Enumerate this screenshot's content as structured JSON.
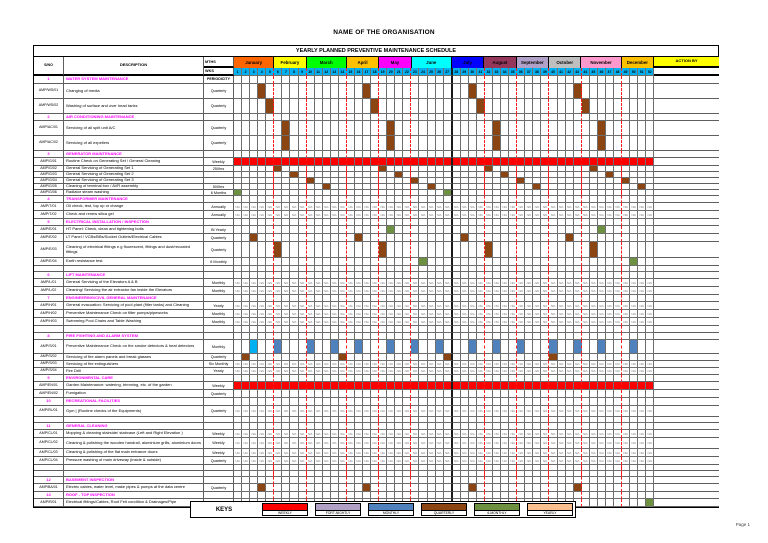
{
  "page": {
    "title": "NAME OF THE ORGANISATION",
    "subtitle": "YEARLY PLANNED PREVENTIVE MAINTENANCE SCHEDULE",
    "page_label": "Page 1"
  },
  "header": {
    "sno": "S/NO",
    "description": "DESCRIPTION",
    "mths": "MTHS",
    "wks": "WKS",
    "action_by": "ACTION BY",
    "periodicity": "PERIODICITY"
  },
  "weeks": 52,
  "month_boundaries": [
    5,
    9,
    14,
    18,
    22,
    31,
    35,
    39,
    43,
    48
  ],
  "midyear_boundary": 27,
  "months": [
    {
      "name": "January",
      "span": 5,
      "color": "#FF6600"
    },
    {
      "name": "February",
      "span": 4,
      "color": "#FFFF00"
    },
    {
      "name": "March",
      "span": 5,
      "color": "#00FF00"
    },
    {
      "name": "April",
      "span": 4,
      "color": "#FFC000"
    },
    {
      "name": "May",
      "span": 4,
      "color": "#FF00FF"
    },
    {
      "name": "June",
      "span": 5,
      "color": "#00FFFF"
    },
    {
      "name": "July",
      "span": 4,
      "color": "#0000FF"
    },
    {
      "name": "August",
      "span": 4,
      "color": "#94375B"
    },
    {
      "name": "September",
      "span": 4,
      "color": "#B1A0C7"
    },
    {
      "name": "October",
      "span": 4,
      "color": "#BFBFBF"
    },
    {
      "name": "November",
      "span": 5,
      "color": "#FF99CC"
    },
    {
      "name": "December",
      "span": 4,
      "color": "#FFC000"
    }
  ],
  "colors": {
    "weekly": "#FF0000",
    "fortnightly": "#B2A1C7",
    "monthly": "#4F81BD",
    "quarterly": "#8B4513",
    "six_monthly": "#6E9041",
    "yearly": "#FAC090",
    "week_header": "#00B0F0",
    "cyan_mark": "#00B0F0",
    "section_text": "#FF00FF",
    "na_text": "#808080",
    "action_by_bg": "#FFFF00"
  },
  "na_value": "N/A",
  "keys": {
    "label": "KEYS",
    "items": [
      {
        "label": "WEEKLY",
        "color": "#FF0000"
      },
      {
        "label": "FORT-NIGHTLY",
        "color": "#B2A1C7"
      },
      {
        "label": "MONTHLY",
        "color": "#4F81BD"
      },
      {
        "label": "QUARTERLY",
        "color": "#8B4513"
      },
      {
        "label": "6-MONTHLY",
        "color": "#6E9041"
      },
      {
        "label": "YEARLY",
        "color": "#FAC090"
      }
    ]
  },
  "rows": [
    {
      "t": "s",
      "sno": "1",
      "desc": "WATER SYSTEM MAINTENANCE",
      "period": "PERIODICITY",
      "h": 8
    },
    {
      "t": "r",
      "sno": "AMP/WS/01",
      "desc": "Changing of media",
      "period": "Quarterly",
      "h": 15,
      "marks": [
        [
          4,
          "Q"
        ],
        [
          17,
          "Q"
        ],
        [
          30,
          "Q"
        ],
        [
          43,
          "Q"
        ]
      ]
    },
    {
      "t": "r",
      "sno": "AMP/WS/02",
      "desc": "Washing of surface and over head tanks",
      "period": "Quarterly",
      "h": 15,
      "marks": [
        [
          5,
          "Q"
        ],
        [
          18,
          "Q"
        ],
        [
          31,
          "Q"
        ],
        [
          44,
          "Q"
        ]
      ]
    },
    {
      "t": "s",
      "sno": "2",
      "desc": "AIR CONDITIONING MAINTENANCE",
      "h": 7
    },
    {
      "t": "r",
      "sno": "AMP/AC/01",
      "desc": "Servicing of all split unit A/C",
      "period": "Quarterly",
      "h": 15,
      "marks": [
        [
          7,
          "Q"
        ],
        [
          20,
          "Q"
        ],
        [
          33,
          "Q"
        ],
        [
          46,
          "Q"
        ]
      ]
    },
    {
      "t": "r",
      "sno": "AMP/AC/02",
      "desc": "Servicing of all expellers",
      "period": "Quarterly",
      "h": 15,
      "marks": [
        [
          7,
          "Q"
        ],
        [
          20,
          "Q"
        ],
        [
          33,
          "Q"
        ],
        [
          46,
          "Q"
        ]
      ]
    },
    {
      "t": "s",
      "sno": "3",
      "desc": "GENERATOR MAINTENANCE",
      "h": 7
    },
    {
      "t": "r",
      "sno": "AMP/G/01",
      "desc": "Routine Check on Generating Set / General Cleaning",
      "period": "Weekly",
      "h": 8,
      "fill": "W"
    },
    {
      "t": "r",
      "sno": "AMP/G/02",
      "desc": "General Servicing of Generating Set 1",
      "period": "250hrs",
      "h": 6,
      "marks": [
        [
          6,
          "Q"
        ],
        [
          19,
          "Q"
        ],
        [
          32,
          "Q"
        ],
        [
          45,
          "Q"
        ]
      ]
    },
    {
      "t": "r",
      "sno": "AMP/G/03",
      "desc": "General Servicing of Generating Set 2",
      "period": "",
      "h": 6,
      "marks": [
        [
          8,
          "Q"
        ],
        [
          21,
          "Q"
        ],
        [
          34,
          "Q"
        ],
        [
          47,
          "Q"
        ]
      ]
    },
    {
      "t": "r",
      "sno": "AMP/G/04",
      "desc": "General Servicing of Generating Set 3",
      "period": "",
      "h": 6,
      "marks": [
        [
          10,
          "Q"
        ],
        [
          23,
          "Q"
        ],
        [
          36,
          "Q"
        ],
        [
          49,
          "Q"
        ]
      ]
    },
    {
      "t": "r",
      "sno": "AMP/G/05",
      "desc": "Cleaning of terminal box / AVR assembly",
      "period": "500hrs",
      "h": 6,
      "marks": [
        [
          12,
          "Q"
        ],
        [
          25,
          "Q"
        ],
        [
          38,
          "Q"
        ],
        [
          51,
          "Q"
        ]
      ]
    },
    {
      "t": "r",
      "sno": "AMP/G/06",
      "desc": "Radiator steam washing",
      "period": "6 Months",
      "h": 6,
      "marks": [
        [
          1,
          "S"
        ],
        [
          27,
          "S"
        ]
      ]
    },
    {
      "t": "s",
      "sno": "4",
      "desc": "TRANSFORMER MAINTENANCE",
      "h": 7
    },
    {
      "t": "r",
      "sno": "AMP/T/01",
      "desc": "Oil check, test, top up or change",
      "period": "Annually",
      "h": 8,
      "na": true
    },
    {
      "t": "r",
      "sno": "AMP/T/02",
      "desc": "Check and renew silica gel",
      "period": "Annually",
      "h": 8,
      "na": true
    },
    {
      "t": "s",
      "sno": "5",
      "desc": "ELECTRICAL INSTALLATION / INSPECTION",
      "h": 7
    },
    {
      "t": "r",
      "sno": "AMP/E/01",
      "desc": "HT Panel: Check, clean and tightening bolts",
      "period": "Bi Yearly",
      "h": 8,
      "marks": [
        [
          20,
          "S"
        ],
        [
          46,
          "S"
        ]
      ]
    },
    {
      "t": "r",
      "sno": "AMP/E/02",
      "desc": "LT Panel / VCBs/BBs/Socket Outlets/Electrical Cables",
      "period": "Quarterly",
      "h": 8,
      "marks": [
        [
          3,
          "Q"
        ],
        [
          16,
          "Q"
        ],
        [
          29,
          "Q"
        ],
        [
          42,
          "Q"
        ]
      ]
    },
    {
      "t": "r",
      "sno": "AMP/E/03",
      "desc": "Cleaning of electrical fittings e.g fluorescent, fittings and dust/recoated fittings",
      "period": "Quarterly",
      "h": 16,
      "marks": [
        [
          6,
          "Q"
        ],
        [
          19,
          "Q"
        ],
        [
          32,
          "Q"
        ],
        [
          45,
          "Q"
        ]
      ]
    },
    {
      "t": "r",
      "sno": "AMP/E/04",
      "desc": "Earth resistance test",
      "period": "6 Monthly",
      "h": 8,
      "marks": [
        [
          24,
          "S"
        ],
        [
          50,
          "S"
        ]
      ]
    },
    {
      "t": "b",
      "h": 6
    },
    {
      "t": "s",
      "sno": "6",
      "desc": "LIFT MAINTENANCE",
      "h": 7
    },
    {
      "t": "r",
      "sno": "AMP/L/01",
      "desc": "General Servicing of the Elevators  A & B",
      "period": "Monthly",
      "h": 8,
      "na": true
    },
    {
      "t": "r",
      "sno": "AMP/L/02",
      "desc": "Cleaning/ Servicing the air extractor fan inside the Elevators",
      "period": "Monthly",
      "h": 8,
      "na": true
    },
    {
      "t": "s",
      "sno": "7",
      "desc": "ENGINEERING/CIVIL GENERAL MAINTENANCE",
      "h": 7
    },
    {
      "t": "r",
      "sno": "AMP/H/01",
      "desc": "General evacuation: Servicing of pool plant (filter tanks) and Cleaning",
      "period": "Yearly",
      "h": 8,
      "na": true
    },
    {
      "t": "r",
      "sno": "AMP/H/02",
      "desc": "Preventive Maintenance Check on filter pumps/pipeworks",
      "period": "Monthly",
      "h": 8,
      "na": true
    },
    {
      "t": "r",
      "sno": "AMP/H/03",
      "desc": "Swimming Pool Chairs and Table Washing",
      "period": "Monthly",
      "h": 8,
      "na": true
    },
    {
      "t": "b",
      "h": 7
    },
    {
      "t": "s",
      "sno": "8",
      "desc": "FIRE FIGHTING AND ALARM SYSTEM",
      "h": 7
    },
    {
      "t": "r",
      "sno": "AMP/S/01",
      "desc": "Preventive Maintenance Check on the smoke detectors & heat detectors",
      "period": "Monthly",
      "h": 14,
      "marks": [
        [
          3,
          "C"
        ],
        [
          6,
          "M"
        ],
        [
          10,
          "M"
        ],
        [
          13,
          "M"
        ],
        [
          16,
          "M"
        ],
        [
          20,
          "M"
        ],
        [
          23,
          "M"
        ],
        [
          26,
          "M"
        ],
        [
          30,
          "M"
        ],
        [
          33,
          "M"
        ],
        [
          36,
          "M"
        ],
        [
          40,
          "M"
        ],
        [
          43,
          "M"
        ],
        [
          46,
          "M"
        ],
        [
          50,
          "M"
        ]
      ]
    },
    {
      "t": "r",
      "sno": "AMP/S/02",
      "desc": "Servicing of fire alarm panels and break glasses",
      "period": "Quarterly",
      "h": 7,
      "marks": [
        [
          2,
          "Q"
        ],
        [
          14,
          "Q"
        ],
        [
          27,
          "Q"
        ],
        [
          40,
          "Q"
        ]
      ]
    },
    {
      "t": "r",
      "sno": "AMP/S/03",
      "desc": "Servicing of fire extinguishers",
      "period": "Six Monthly",
      "h": 7,
      "na": true
    },
    {
      "t": "r",
      "sno": "AMP/S/04",
      "desc": "Fire Drill",
      "period": "Yearly",
      "h": 7,
      "na": true
    },
    {
      "t": "s",
      "sno": "9",
      "desc": "ENVIRONMENTAL CARE",
      "h": 7
    },
    {
      "t": "r",
      "sno": "AMP/EN/01",
      "desc": "Garden Maintenance: watering, trimming, etc. of the garden",
      "period": "Weekly",
      "h": 8,
      "fill": "W"
    },
    {
      "t": "r",
      "sno": "AMP/EN/02",
      "desc": "Fumigation",
      "period": "Quarterly",
      "h": 8
    },
    {
      "t": "s",
      "sno": "10",
      "desc": "RECREATIONAL FACILITIES",
      "h": 8
    },
    {
      "t": "r",
      "sno": "AMP/RL/01",
      "desc": "Gym | (Routine checks of the Equipments)",
      "period": "Quarterly",
      "h": 11,
      "na": true
    },
    {
      "t": "b",
      "h": 6
    },
    {
      "t": "s",
      "sno": "11",
      "desc": "GENERAL CLEANING",
      "h": 7
    },
    {
      "t": "r",
      "sno": "AMP/CL/01",
      "desc": "Mopping & cleaning stairside/ staircase (Left and Right Elevation )",
      "period": "Weekly",
      "h": 8,
      "na": true
    },
    {
      "t": "r",
      "sno": "AMP/CL/02",
      "desc": "Cleaning & polishing the wooden handrail, aluminium grills, aluminium doors",
      "period": "Weekly",
      "h": 11,
      "na": true
    },
    {
      "t": "r",
      "sno": "AMP/CL/03",
      "desc": "Cleaning & polishing of the flat main entrance doors",
      "period": "Weekly",
      "h": 8,
      "na": true
    },
    {
      "t": "r",
      "sno": "AMP/CL/04",
      "desc": "Pressure washing of main driveway (inside & outside)",
      "period": "Quarterly",
      "h": 8,
      "na": true
    },
    {
      "t": "b",
      "h": 6
    },
    {
      "t": "b",
      "h": 6
    },
    {
      "t": "s",
      "sno": "12",
      "desc": "BASEMENT INSPECTION",
      "h": 7
    },
    {
      "t": "r",
      "sno": "AMP/BA/01",
      "desc": "Electric cables, water level, make pipes & pumps at the data centre",
      "period": "Quarterly",
      "h": 8,
      "marks": [
        [
          4,
          "Q"
        ],
        [
          17,
          "Q"
        ],
        [
          30,
          "Q"
        ],
        [
          43,
          "Q"
        ]
      ]
    },
    {
      "t": "s",
      "sno": "13",
      "desc": "ROOF - TOP INSPECTION",
      "h": 7
    },
    {
      "t": "r",
      "sno": "AMP/R/01",
      "desc": "Electrical fittings/Cables, Roof Felt condition & Drainages/Pipe",
      "period": "Quarterly",
      "h": 8,
      "marks": [
        [
          52,
          "S"
        ]
      ]
    }
  ]
}
